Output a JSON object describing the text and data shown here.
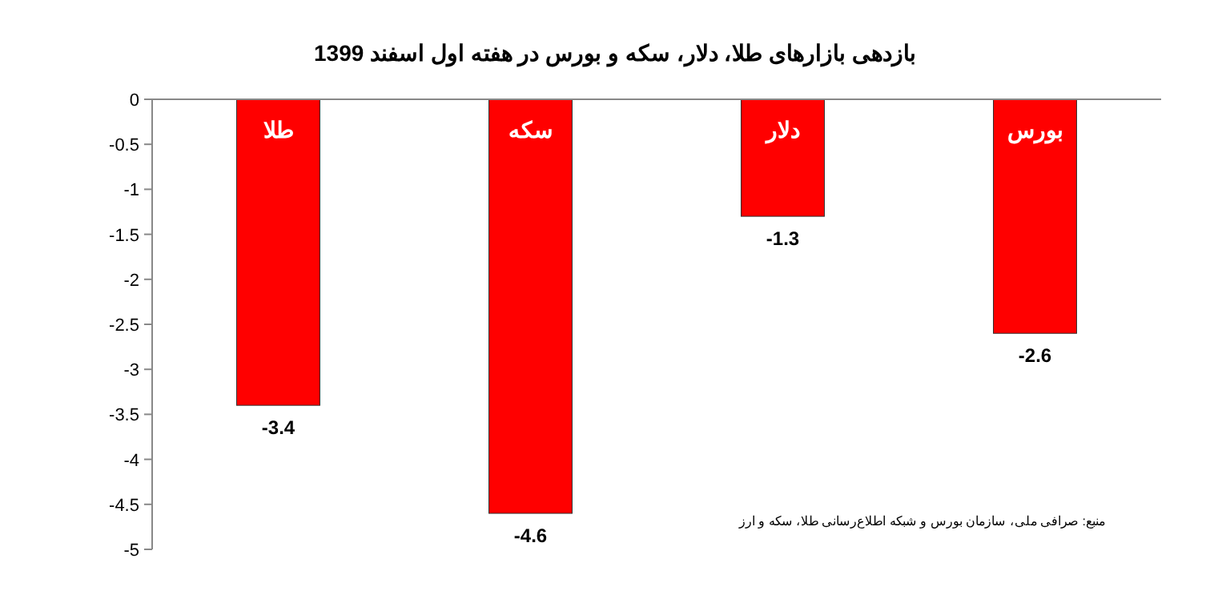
{
  "chart_data": {
    "type": "bar",
    "title": "بازدهی بازارهای طلا، دلار، سکه و بورس در هفته اول اسفند 1399",
    "categories": [
      "طلا",
      "سکه",
      "دلار",
      "بورس"
    ],
    "values": [
      -3.4,
      -4.6,
      -1.3,
      -2.6
    ],
    "color": "#ff0000",
    "ylim": [
      -5,
      0
    ],
    "yticks": [
      0,
      -0.5,
      -1,
      -1.5,
      -2,
      -2.5,
      -3,
      -3.5,
      -4,
      -4.5,
      -5
    ],
    "data_labels": true,
    "grid": false,
    "annotations": [
      "منبع: صرافی ملی، سازمان بورس و شبکه اطلاع‌رسانی طلا، سکه و ارز"
    ]
  }
}
